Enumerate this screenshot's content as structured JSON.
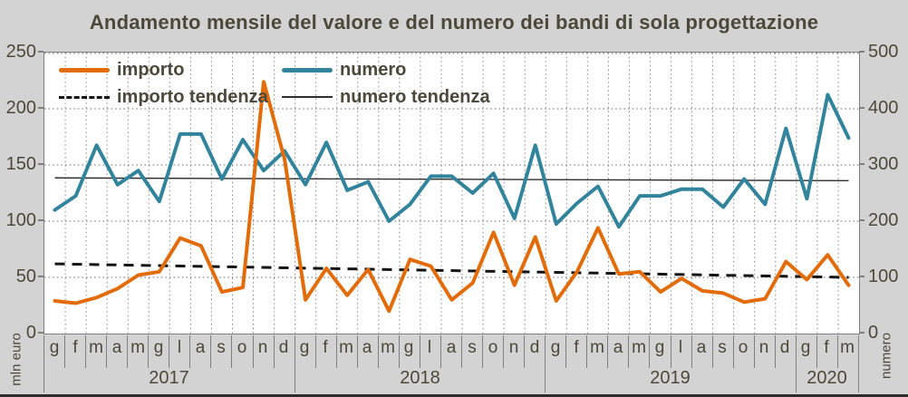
{
  "title": "Andamento mensile del valore e del numero dei bandi di sola progettazione",
  "legend": {
    "importo": "importo",
    "importo_tendenza": "importo tendenza",
    "numero": "numero",
    "numero_tendenza": "numero tendenza"
  },
  "colors": {
    "importo": "#e36c0a",
    "numero": "#31849b",
    "importo_tendenza": "#141414",
    "numero_tendenza": "#2e2e2e",
    "grid": "#8c8c8c",
    "text": "#4a493b",
    "plot_background": "#ffffff",
    "figure_background": "#d3d3d3"
  },
  "chart_data": {
    "type": "line",
    "title": "Andamento mensile del valore e del numero dei bandi di sola progettazione",
    "x_months": [
      "g",
      "f",
      "m",
      "a",
      "m",
      "g",
      "l",
      "a",
      "s",
      "o",
      "n",
      "d",
      "g",
      "f",
      "m",
      "a",
      "m",
      "g",
      "l",
      "a",
      "s",
      "o",
      "n",
      "d",
      "g",
      "f",
      "m",
      "a",
      "m",
      "g",
      "l",
      "a",
      "s",
      "o",
      "n",
      "d",
      "g",
      "f",
      "m"
    ],
    "x_years": [
      {
        "label": "2017",
        "n_months": 12
      },
      {
        "label": "2018",
        "n_months": 12
      },
      {
        "label": "2019",
        "n_months": 12
      },
      {
        "label": "2020",
        "n_months": 3
      }
    ],
    "left_axis": {
      "title": "mln euro",
      "min": 0,
      "max": 250,
      "step": 50,
      "ticks": [
        "0",
        "50",
        "100",
        "150",
        "200",
        "250"
      ]
    },
    "right_axis": {
      "title": "numero",
      "min": 0,
      "max": 500,
      "step": 100,
      "ticks": [
        "0",
        "100",
        "200",
        "300",
        "400",
        "500"
      ]
    },
    "grid": "dotted",
    "legend_position": "top-left-inside",
    "series": [
      {
        "name": "importo",
        "axis": "left",
        "style": "thick",
        "values": [
          29,
          27,
          32,
          40,
          52,
          55,
          85,
          78,
          37,
          41,
          224,
          155,
          30,
          58,
          34,
          57,
          20,
          66,
          60,
          30,
          45,
          90,
          43,
          86,
          29,
          55,
          94,
          53,
          55,
          37,
          49,
          38,
          36,
          28,
          31,
          64,
          48,
          70,
          43
        ]
      },
      {
        "name": "numero",
        "axis": "right",
        "style": "thick",
        "values": [
          220,
          245,
          335,
          265,
          290,
          235,
          355,
          355,
          275,
          345,
          290,
          325,
          265,
          340,
          255,
          270,
          200,
          230,
          280,
          280,
          250,
          285,
          205,
          335,
          195,
          232,
          262,
          190,
          245,
          245,
          257,
          257,
          225,
          275,
          230,
          365,
          240,
          425,
          348
        ]
      },
      {
        "name": "importo tendenza",
        "axis": "left",
        "style": "dashed",
        "trend": {
          "start": 62,
          "end": 50
        }
      },
      {
        "name": "numero tendenza",
        "axis": "right",
        "style": "thin",
        "trend": {
          "start": 277,
          "end": 272
        }
      }
    ]
  }
}
